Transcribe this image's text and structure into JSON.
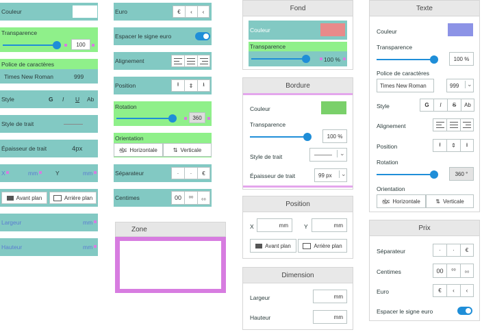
{
  "col1": {
    "couleur": "Couleur",
    "transparence": "Transparence",
    "transparence_value": "100",
    "police_label": "Police de caractères",
    "font_name": "Times New Roman",
    "font_size": "999",
    "style": "Style",
    "style_buttons": [
      "G",
      "I",
      "U",
      "Ab"
    ],
    "style_trait": "Style de trait",
    "epaisseur": "Épaisseur de trait",
    "epaisseur_value": "4px",
    "x_label": "X",
    "x_unit": "mm",
    "y_label": "Y",
    "y_unit": "mm",
    "avant_plan": "Avant plan",
    "arriere_plan": "Arrière plan",
    "largeur": "Largeur",
    "largeur_unit": "mm",
    "hauteur": "Hauteur",
    "hauteur_unit": "mm"
  },
  "col2": {
    "euro": "Euro",
    "euro_buttons": [
      "€",
      "‹",
      "‹"
    ],
    "espacer": "Espacer le signe euro",
    "alignement": "Alignement",
    "position": "Position",
    "rotation": "Rotation",
    "rotation_value": "360",
    "orientation": "Orientation",
    "horizontale": "Horizontale",
    "verticale": "Verticale",
    "separateur": "Séparateur",
    "sep_buttons": [
      "·",
      "·",
      "€"
    ],
    "centimes": "Centimes",
    "cent_buttons": [
      "00",
      "⁰⁰",
      "₀₀"
    ],
    "zone_title": "Zone"
  },
  "fond": {
    "title": "Fond",
    "couleur": "Couleur",
    "transparence": "Transparence",
    "transparence_value": "100 %",
    "color": "#e88a8a"
  },
  "bordure": {
    "title": "Bordure",
    "couleur": "Couleur",
    "color": "#7ad06a",
    "transparence": "Transparence",
    "transparence_value": "100 %",
    "style_trait": "Style de trait",
    "epaisseur": "Épaisseur de trait",
    "epaisseur_value": "99 px"
  },
  "position": {
    "title": "Position",
    "x_label": "X",
    "x_unit": "mm",
    "y_label": "Y",
    "y_unit": "mm",
    "avant_plan": "Avant plan",
    "arriere_plan": "Arrière plan"
  },
  "dimension": {
    "title": "Dimension",
    "largeur": "Largeur",
    "largeur_unit": "mm",
    "hauteur": "Hauteur",
    "hauteur_unit": "mm"
  },
  "texte": {
    "title": "Texte",
    "couleur": "Couleur",
    "color": "#8c93e6",
    "transparence": "Transparence",
    "transparence_value": "100 %",
    "police": "Police de caractères",
    "font_name": "Times New Roman",
    "font_size": "999",
    "style": "Style",
    "style_buttons": [
      "G",
      "I",
      "S",
      "Ab"
    ],
    "alignement": "Alignement",
    "position": "Position",
    "rotation": "Rotation",
    "rotation_value": "360 °",
    "orientation": "Orientation",
    "horizontale": "Horizontale",
    "verticale": "Verticale"
  },
  "prix": {
    "title": "Prix",
    "separateur": "Séparateur",
    "sep_buttons": [
      "·",
      "·",
      "€"
    ],
    "centimes": "Centimes",
    "cent_buttons": [
      "00",
      "⁰⁰",
      "₀₀"
    ],
    "euro": "Euro",
    "euro_buttons": [
      "€",
      "‹",
      "‹"
    ],
    "espacer": "Espacer le signe euro"
  },
  "colors": {
    "teal": "#82c9c3",
    "green": "#8ff08a",
    "accent": "#1f8ed8",
    "pink": "#d77ce0"
  }
}
